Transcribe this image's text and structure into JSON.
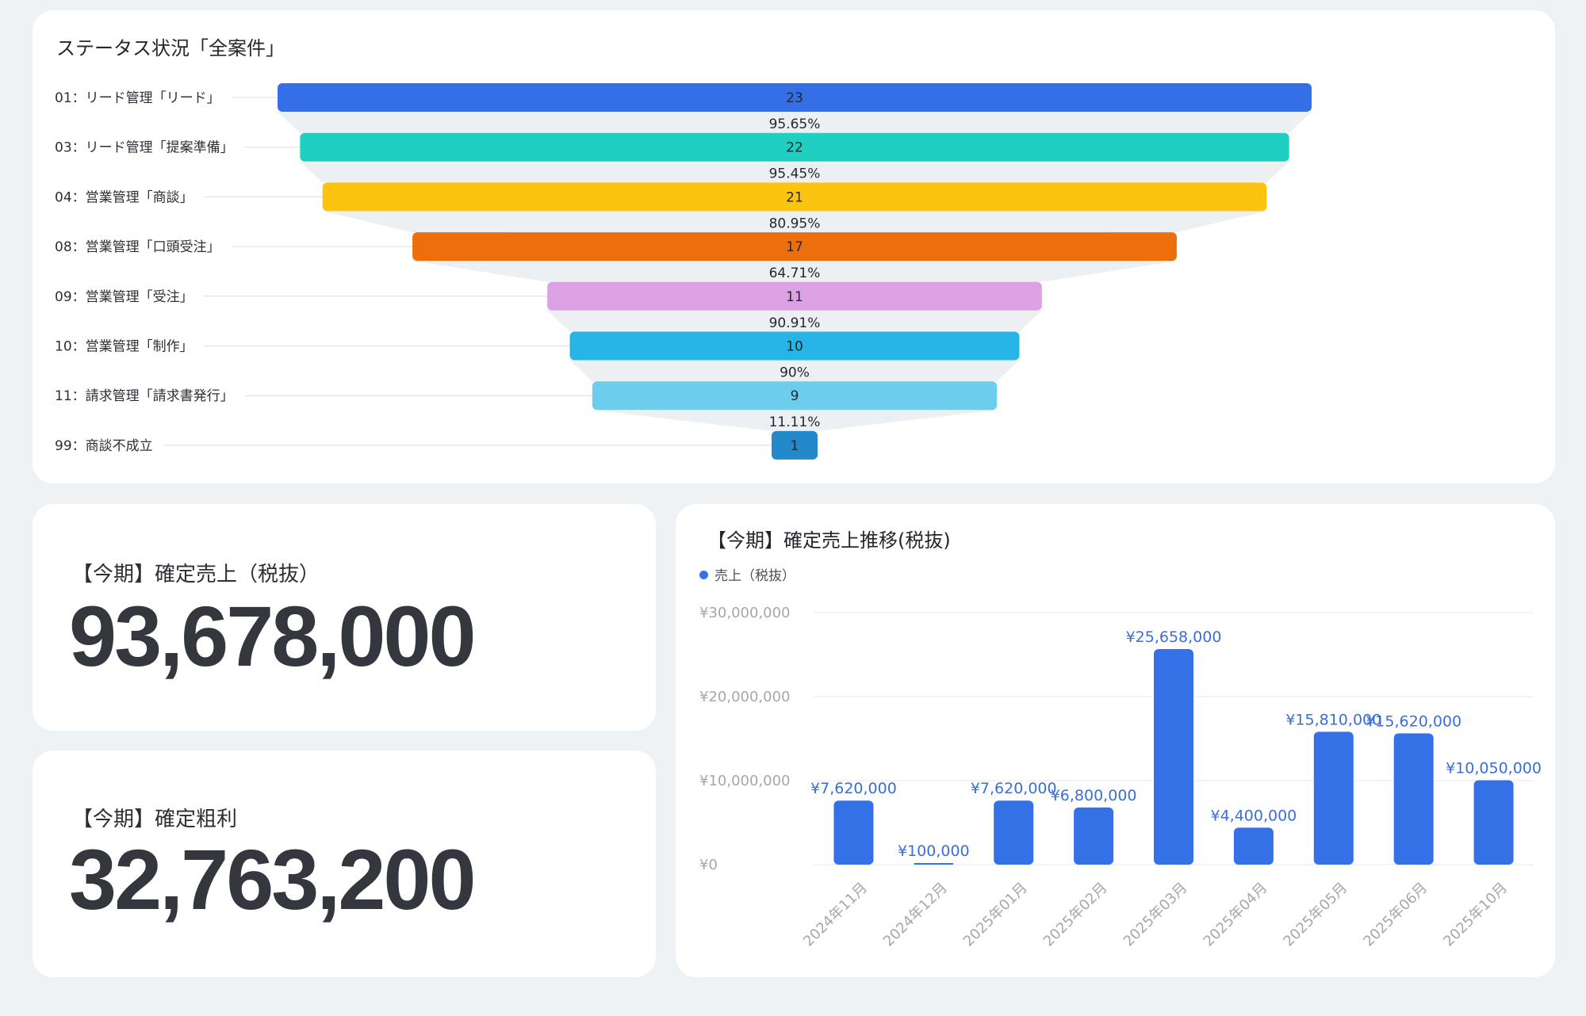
{
  "funnel_card": {
    "title": "ステータス状況「全案件」"
  },
  "sales_card": {
    "label": "【今期】確定売上（税抜）",
    "value": "93,678,000"
  },
  "profit_card": {
    "label": "【今期】確定粗利",
    "value": "32,763,200"
  },
  "trend_card": {
    "title": "【今期】確定売上推移(税抜)"
  },
  "chart_data": [
    {
      "type": "funnel",
      "title": "ステータス状況「全案件」",
      "categories": [
        "01：リード管理「リード」",
        "03：リード管理「提案準備」",
        "04：営業管理「商談」",
        "08：営業管理「口頭受注」",
        "09：営業管理「受注」",
        "10：営業管理「制作」",
        "11：請求管理「請求書発行」",
        "99：商談不成立"
      ],
      "values": [
        23,
        22,
        21,
        17,
        11,
        10,
        9,
        1
      ],
      "conversion_labels": [
        "95.65%",
        "95.45%",
        "80.95%",
        "64.71%",
        "90.91%",
        "90%",
        "11.11%"
      ],
      "colors": [
        "#356fe6",
        "#1fcfbf",
        "#fbc411",
        "#ec6e0d",
        "#dca1e3",
        "#26b5e6",
        "#6ccdec",
        "#2389c9"
      ]
    },
    {
      "type": "bar",
      "title": "【今期】確定売上推移(税抜)",
      "legend": [
        "売上（税抜）"
      ],
      "legend_position": "top-left",
      "categories": [
        "2024年11月",
        "2024年12月",
        "2025年01月",
        "2025年02月",
        "2025年03月",
        "2025年04月",
        "2025年05月",
        "2025年06月",
        "2025年10月"
      ],
      "series": [
        {
          "name": "売上（税抜）",
          "values": [
            7620000,
            100000,
            7620000,
            6800000,
            25658000,
            4400000,
            15810000,
            15620000,
            10050000
          ],
          "labels": [
            "¥7,620,000",
            "¥100,000",
            "¥7,620,000",
            "¥6,800,000",
            "¥25,658,000",
            "¥4,400,000",
            "¥15,810,000",
            "¥15,620,000",
            "¥10,050,000"
          ]
        }
      ],
      "y_ticks": [
        "¥0",
        "¥10,000,000",
        "¥20,000,000",
        "¥30,000,000"
      ],
      "ylim": [
        0,
        30000000
      ],
      "grid": true,
      "color": "#3571e6"
    }
  ]
}
